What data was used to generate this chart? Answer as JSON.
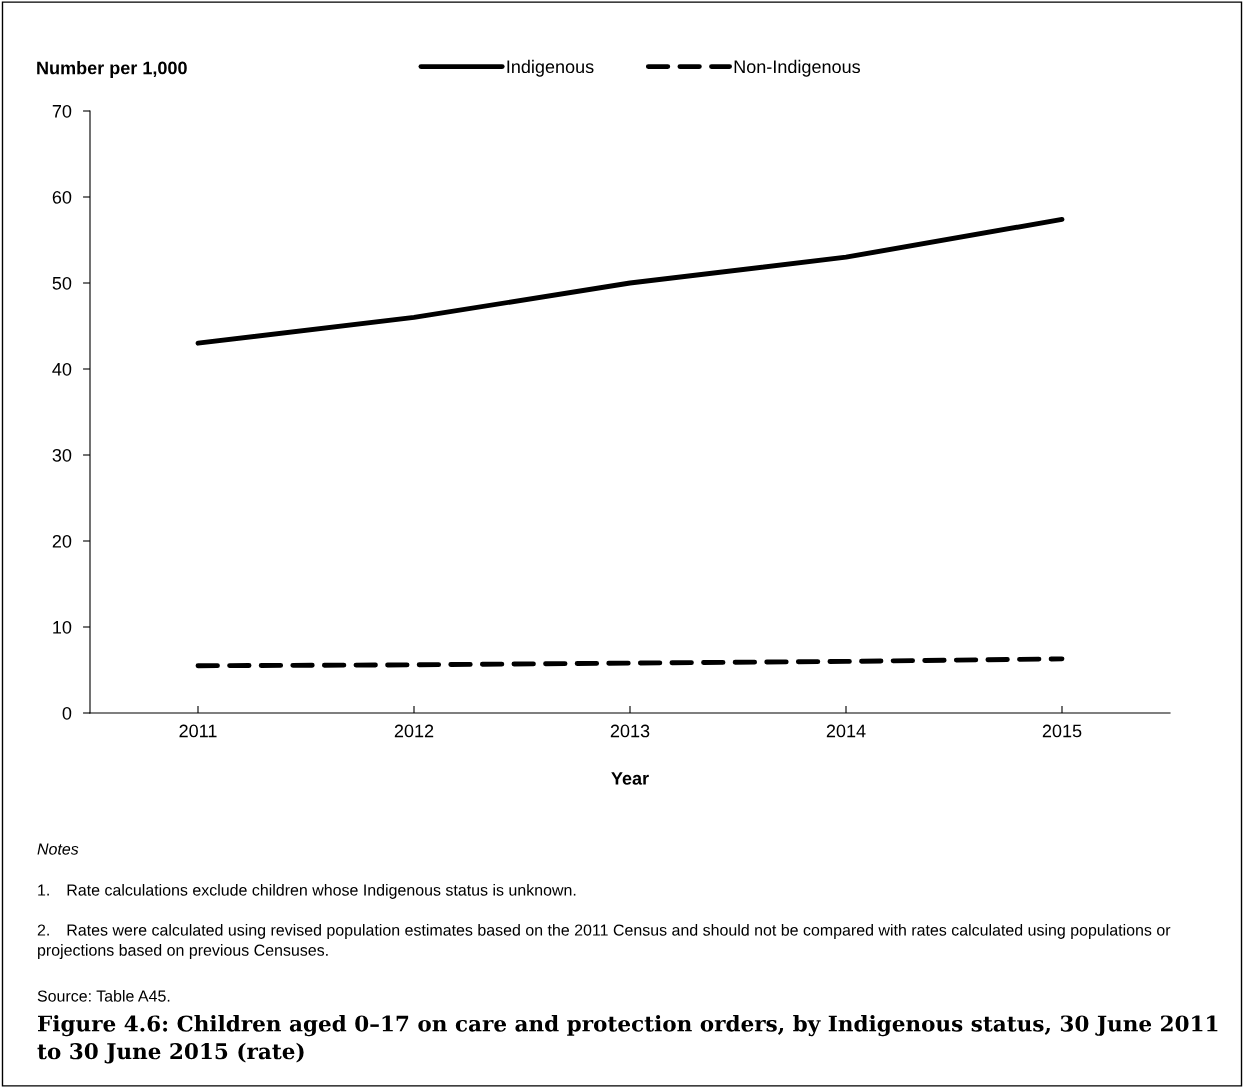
{
  "chart_data": {
    "type": "line",
    "title": "Figure 4.6: Children aged 0–17 on care and protection orders, by Indigenous status, 30 June 2011 to 30 June 2015 (rate)",
    "xlabel": "Year",
    "ylabel": "Number per 1,000",
    "categories": [
      "2011",
      "2012",
      "2013",
      "2014",
      "2015"
    ],
    "series": [
      {
        "name": "Indigenous",
        "color": "#000000",
        "line_style": "solid",
        "values": [
          43.0,
          46.0,
          50.0,
          53.0,
          57.4
        ]
      },
      {
        "name": "Non-Indigenous",
        "color": "#000000",
        "line_style": "dashed",
        "values": [
          5.5,
          5.6,
          5.8,
          6.0,
          6.3
        ]
      }
    ],
    "ylim": [
      0,
      70
    ],
    "yticks": [
      0,
      10,
      20,
      30,
      40,
      50,
      60,
      70
    ],
    "grid": false,
    "legend": "top",
    "marker": "none",
    "annotations": [
      "Notes",
      "1. Rate calculations exclude children whose Indigenous status is unknown.",
      "2. Rates were calculated using revised population estimates based on the 2011 Census and should not be compared with rates calculated using populations or projections based on previous Censuses.",
      "Source: Table A45."
    ]
  }
}
